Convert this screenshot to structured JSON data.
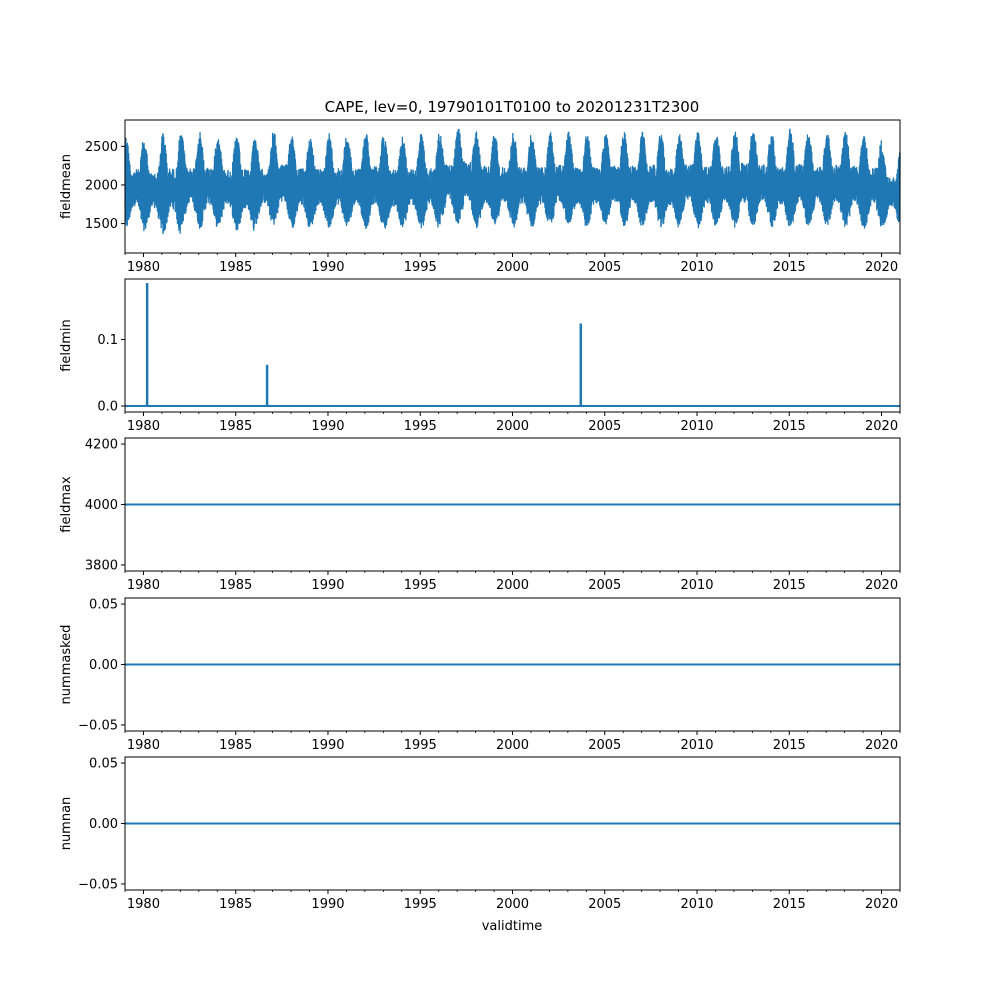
{
  "chart_data": {
    "title": "CAPE, lev=0, 19790101T0100 to 20201231T2300",
    "xlabel": "validtime",
    "xlim": [
      1979.0,
      2021.0
    ],
    "x_ticks": [
      1980,
      1985,
      1990,
      1995,
      2000,
      2005,
      2010,
      2015,
      2020
    ],
    "series_color": "#1f77b4",
    "panels": [
      {
        "ylabel": "fieldmean",
        "type": "line",
        "ylim": [
          1120,
          2840
        ],
        "y_ticks": [
          1500,
          2000,
          2500
        ],
        "y_tick_labels": [
          "1500",
          "2000",
          "2500"
        ],
        "seasonal_cycle": {
          "mean": 1960,
          "annual_lows": [
            1300,
            1280,
            1200,
            1350,
            1300,
            1330,
            1250,
            1360,
            1350,
            1300,
            1330,
            1300,
            1330,
            1300,
            1280,
            1320,
            1280,
            1360,
            1350,
            1300,
            1350,
            1300,
            1320,
            1350,
            1300,
            1340,
            1360,
            1310,
            1330,
            1300,
            1360,
            1300,
            1350,
            1300,
            1350,
            1320,
            1300,
            1350,
            1340,
            1310,
            1300,
            1360
          ],
          "annual_highs": [
            2630,
            2580,
            2700,
            2650,
            2680,
            2620,
            2650,
            2610,
            2700,
            2650,
            2620,
            2680,
            2650,
            2700,
            2640,
            2620,
            2660,
            2690,
            2760,
            2700,
            2650,
            2680,
            2660,
            2690,
            2700,
            2650,
            2680,
            2690,
            2700,
            2650,
            2700,
            2690,
            2660,
            2750,
            2700,
            2660,
            2740,
            2650,
            2700,
            2690,
            2660,
            2450
          ]
        }
      },
      {
        "ylabel": "fieldmin",
        "type": "line",
        "ylim": [
          -0.009,
          0.191
        ],
        "y_ticks": [
          0.0,
          0.1
        ],
        "y_tick_labels": [
          "0.0",
          "0.1"
        ],
        "baseline": 0.0,
        "spikes": [
          {
            "x": 1980.2,
            "y": 0.185
          },
          {
            "x": 1986.7,
            "y": 0.062
          },
          {
            "x": 2003.7,
            "y": 0.124
          }
        ]
      },
      {
        "ylabel": "fieldmax",
        "type": "line",
        "ylim": [
          3780,
          4220
        ],
        "y_ticks": [
          3800,
          4000,
          4200
        ],
        "y_tick_labels": [
          "3800",
          "4000",
          "4200"
        ],
        "constant": 4000
      },
      {
        "ylabel": "nummasked",
        "type": "line",
        "ylim": [
          -0.055,
          0.055
        ],
        "y_ticks": [
          -0.05,
          0.0,
          0.05
        ],
        "y_tick_labels": [
          "−0.05",
          "0.00",
          "0.05"
        ],
        "constant": 0
      },
      {
        "ylabel": "numnan",
        "type": "line",
        "ylim": [
          -0.055,
          0.055
        ],
        "y_ticks": [
          -0.05,
          0.0,
          0.05
        ],
        "y_tick_labels": [
          "−0.05",
          "0.00",
          "0.05"
        ],
        "constant": 0
      }
    ]
  }
}
